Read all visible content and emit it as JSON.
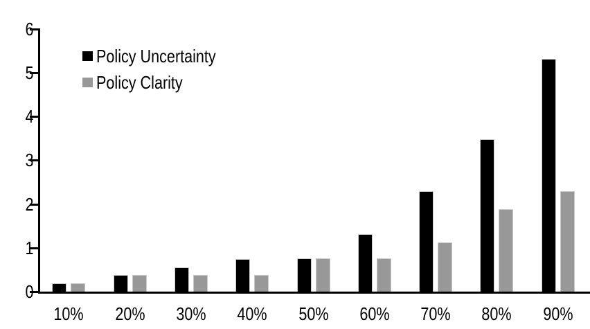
{
  "chart_data": {
    "type": "bar",
    "categories": [
      "10%",
      "20%",
      "30%",
      "40%",
      "50%",
      "60%",
      "70%",
      "80%",
      "90%"
    ],
    "series": [
      {
        "name": "Policy Uncertainty",
        "color": "#000000",
        "values": [
          0.19,
          0.38,
          0.56,
          0.75,
          0.76,
          1.32,
          2.3,
          3.49,
          5.32
        ]
      },
      {
        "name": "Policy Clarity",
        "color": "#989898",
        "values": [
          0.19,
          0.38,
          0.38,
          0.38,
          0.76,
          0.76,
          1.12,
          1.88,
          2.29
        ]
      }
    ],
    "title": "",
    "xlabel": "",
    "ylabel": "",
    "ylim": [
      0,
      6
    ],
    "yticks": [
      0,
      1,
      2,
      3,
      4,
      5,
      6
    ],
    "grid": false,
    "legend_position": "top-left-inside",
    "axis_color": "#000000",
    "bar_outline_color": "#c9c9c9",
    "background_color": "#ffffff"
  }
}
